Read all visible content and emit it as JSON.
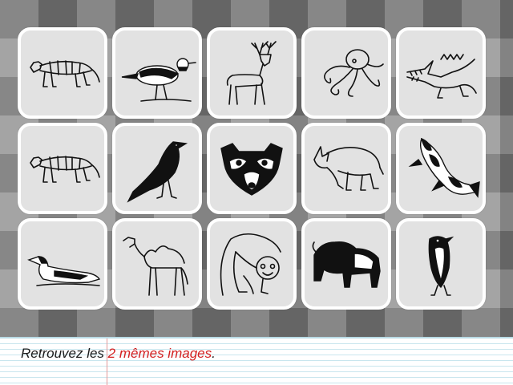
{
  "cards": [
    {
      "animal": "tiger"
    },
    {
      "animal": "plover"
    },
    {
      "animal": "deer"
    },
    {
      "animal": "octopus"
    },
    {
      "animal": "crocodile"
    },
    {
      "animal": "tiger"
    },
    {
      "animal": "crow"
    },
    {
      "animal": "raccoon"
    },
    {
      "animal": "rhinoceros"
    },
    {
      "animal": "koi-fish"
    },
    {
      "animal": "loon"
    },
    {
      "animal": "camel"
    },
    {
      "animal": "monkey"
    },
    {
      "animal": "bison"
    },
    {
      "animal": "penguin"
    }
  ],
  "instruction": {
    "prefix": "Retrouvez les ",
    "highlight": "2 mêmes images",
    "suffix": "."
  },
  "colors": {
    "highlight": "#d42020",
    "card_bg": "#e2e2e2",
    "card_border": "#ffffff",
    "notebook_line": "#c9e6ee",
    "margin_line": "#e59a9a"
  }
}
